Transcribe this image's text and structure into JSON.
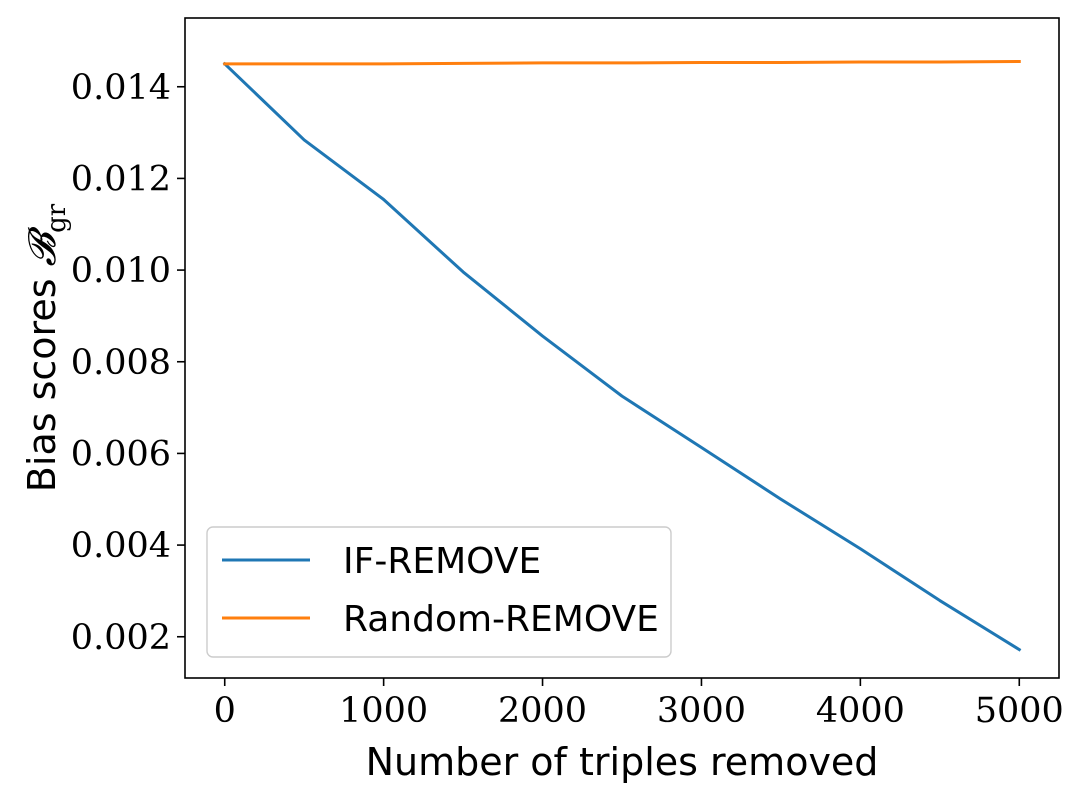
{
  "chart_data": {
    "type": "line",
    "title": "",
    "xlabel": "Number of triples removed",
    "ylabel": {
      "text": "Bias scores ",
      "symbol": "𝓑",
      "subscript": "gr"
    },
    "xlim": [
      -250,
      5250
    ],
    "ylim": [
      0.0011,
      0.0155
    ],
    "xticks": [
      0,
      1000,
      2000,
      3000,
      4000,
      5000
    ],
    "xtick_labels": [
      "0",
      "1000",
      "2000",
      "3000",
      "4000",
      "5000"
    ],
    "yticks": [
      0.002,
      0.004,
      0.006,
      0.008,
      0.01,
      0.012,
      0.014
    ],
    "ytick_labels": [
      "0.002",
      "0.004",
      "0.006",
      "0.008",
      "0.010",
      "0.012",
      "0.014"
    ],
    "grid": false,
    "legend_position": "bottom-left",
    "series": [
      {
        "name": "IF-REMOVE",
        "color": "#1f77b4",
        "x": [
          0,
          500,
          1000,
          1500,
          2000,
          2500,
          3000,
          3500,
          4000,
          4500,
          5000
        ],
        "y": [
          0.0145,
          0.01284,
          0.01154,
          0.00996,
          0.00856,
          0.00725,
          0.00613,
          0.005,
          0.00392,
          0.00279,
          0.00172
        ]
      },
      {
        "name": "Random-REMOVE",
        "color": "#ff7f0e",
        "x": [
          0,
          500,
          1000,
          1500,
          2000,
          2500,
          3000,
          3500,
          4000,
          4500,
          5000
        ],
        "y": [
          0.0145,
          0.0145,
          0.0145,
          0.01451,
          0.01452,
          0.01452,
          0.01453,
          0.01453,
          0.01454,
          0.01454,
          0.01455
        ]
      }
    ]
  }
}
